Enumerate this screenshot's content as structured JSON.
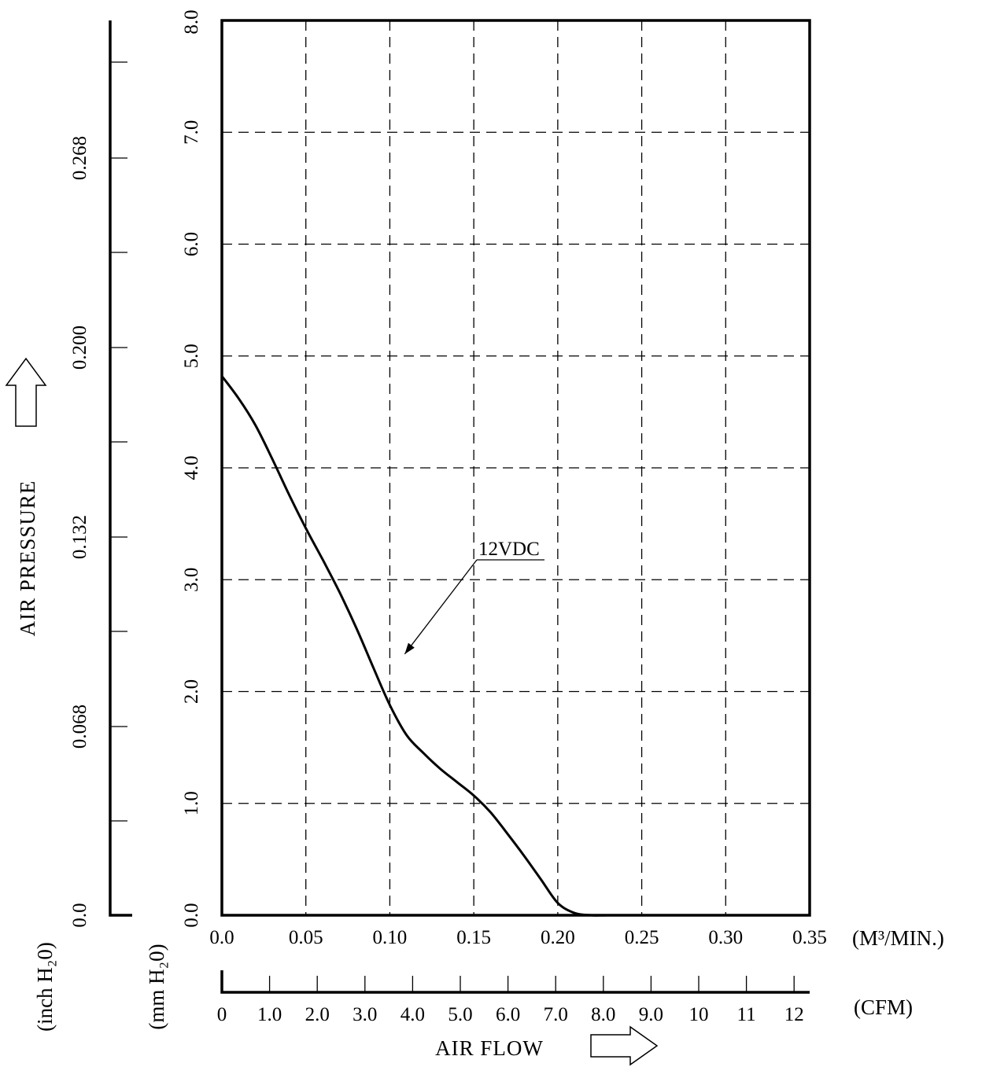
{
  "chart_data": {
    "type": "line",
    "x_axis": {
      "unit": "(M³/MIN.)",
      "range": [
        0,
        0.35
      ],
      "tick_values": [
        0,
        0.05,
        0.1,
        0.15,
        0.2,
        0.25,
        0.3,
        0.35
      ],
      "tick_labels": [
        "0.0",
        "0.05",
        "0.10",
        "0.15",
        "0.20",
        "0.25",
        "0.30",
        "0.35"
      ]
    },
    "x_axis_secondary": {
      "unit": "(CFM)",
      "tick_labels": [
        "0",
        "1.0",
        "2.0",
        "3.0",
        "4.0",
        "5.0",
        "6.0",
        "7.0",
        "8.0",
        "9.0",
        "10",
        "11",
        "12"
      ]
    },
    "y_axis": {
      "unit": "(mm H₂0)",
      "range": [
        0,
        8
      ],
      "tick_values": [
        0,
        1,
        2,
        3,
        4,
        5,
        6,
        7,
        8
      ],
      "tick_labels": [
        "0.0",
        "1.0",
        "2.0",
        "3.0",
        "4.0",
        "5.0",
        "6.0",
        "7.0",
        "8.0"
      ]
    },
    "y_axis_secondary": {
      "unit": "(inch H₂0)",
      "tick_labels": [
        "0.0",
        "0.068",
        "0.132",
        "0.200",
        "0.268"
      ]
    },
    "xlabel": "AIR FLOW",
    "ylabel": "AIR PRESSURE",
    "grid": true,
    "series": [
      {
        "name": "12VDC",
        "x": [
          0.0,
          0.01,
          0.02,
          0.03,
          0.04,
          0.05,
          0.06,
          0.07,
          0.08,
          0.09,
          0.1,
          0.11,
          0.12,
          0.13,
          0.14,
          0.15,
          0.16,
          0.17,
          0.18,
          0.19,
          0.2,
          0.21,
          0.22,
          0.229
        ],
        "y": [
          4.82,
          4.62,
          4.38,
          4.08,
          3.76,
          3.46,
          3.18,
          2.89,
          2.57,
          2.22,
          1.88,
          1.61,
          1.45,
          1.31,
          1.19,
          1.07,
          0.92,
          0.73,
          0.53,
          0.32,
          0.11,
          0.02,
          0.0,
          0.0
        ]
      }
    ],
    "annotations": [
      {
        "text": "12VDC",
        "target_x": 0.107,
        "target_y": 2.3
      }
    ]
  }
}
